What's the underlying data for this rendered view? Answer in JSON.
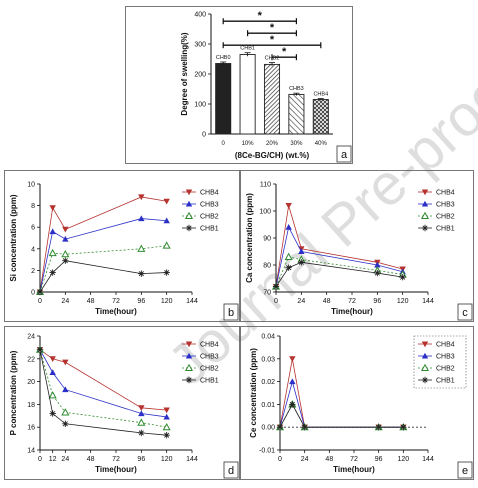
{
  "watermark": "Journal Pre-proof",
  "chart_data": [
    {
      "id": "a",
      "type": "bar",
      "panel_label": "a",
      "ylabel": "Degree of swelling(%)",
      "xlabel": "(8Ce-BG/CH) (wt.%)",
      "ylim": [
        0,
        400
      ],
      "yticks": [
        0,
        100,
        200,
        300,
        400
      ],
      "categories": [
        "0",
        "10%",
        "20%",
        "30%",
        "40%"
      ],
      "bar_labels": [
        "CHB0",
        "CHB1",
        "CHB2",
        "CHB3",
        "CHB4"
      ],
      "values": [
        235,
        265,
        232,
        132,
        115
      ],
      "errors": [
        5,
        6,
        6,
        4,
        3
      ],
      "patterns": [
        "solid",
        "white",
        "dense-hatch",
        "hatch",
        "cross"
      ],
      "significance": [
        {
          "from": 0,
          "to": 3,
          "label": "*"
        },
        {
          "from": 1,
          "to": 3,
          "label": "*"
        },
        {
          "from": 0,
          "to": 4,
          "label": "*"
        },
        {
          "from": 2,
          "to": 3,
          "label": "*"
        }
      ],
      "grid": false
    },
    {
      "id": "b",
      "type": "line",
      "panel_label": "b",
      "ylabel": "Si concentration (ppm)",
      "xlabel": "Time(hour)",
      "xlim": [
        0,
        144
      ],
      "xticks": [
        0,
        24,
        48,
        72,
        96,
        120,
        144
      ],
      "ylim": [
        0,
        10
      ],
      "yticks": [
        0,
        2,
        4,
        6,
        8,
        10
      ],
      "x": [
        0,
        12,
        24,
        96,
        120
      ],
      "series": [
        {
          "name": "CHB4",
          "color": "#b5322f",
          "marker": "tri-down",
          "dash": "",
          "values": [
            0,
            7.8,
            5.8,
            8.8,
            8.4
          ]
        },
        {
          "name": "CHB3",
          "color": "#2b2fc7",
          "marker": "tri-up",
          "dash": "",
          "values": [
            0,
            5.6,
            4.9,
            6.8,
            6.6
          ]
        },
        {
          "name": "CHB2",
          "color": "#2e8b2e",
          "marker": "tri-open",
          "dash": "2,2",
          "values": [
            0,
            3.6,
            3.5,
            4.0,
            4.3
          ]
        },
        {
          "name": "CHB1",
          "color": "#222222",
          "marker": "star",
          "dash": "",
          "values": [
            0,
            1.8,
            2.9,
            1.7,
            1.8
          ]
        }
      ],
      "legend_position": "top-right",
      "grid": false
    },
    {
      "id": "c",
      "type": "line",
      "panel_label": "c",
      "ylabel": "Ca concentration (ppm)",
      "xlabel": "Time(hour)",
      "xlim": [
        0,
        144
      ],
      "xticks": [
        0,
        24,
        48,
        72,
        96,
        120,
        144
      ],
      "ylim": [
        70,
        110
      ],
      "yticks": [
        70,
        80,
        90,
        100,
        110
      ],
      "x": [
        0,
        12,
        24,
        96,
        120
      ],
      "series": [
        {
          "name": "CHB4",
          "color": "#b5322f",
          "marker": "tri-down",
          "dash": "",
          "values": [
            72,
            102,
            86,
            81,
            78.5
          ]
        },
        {
          "name": "CHB3",
          "color": "#2b2fc7",
          "marker": "tri-up",
          "dash": "",
          "values": [
            72,
            94,
            85,
            80,
            77.5
          ]
        },
        {
          "name": "CHB2",
          "color": "#2e8b2e",
          "marker": "tri-open",
          "dash": "2,2",
          "values": [
            72,
            83,
            82,
            78,
            76.5
          ]
        },
        {
          "name": "CHB1",
          "color": "#222222",
          "marker": "star",
          "dash": "",
          "values": [
            72,
            79,
            81,
            77,
            75.5
          ]
        }
      ],
      "legend_position": "top-right",
      "grid": false
    },
    {
      "id": "d",
      "type": "line",
      "panel_label": "d",
      "ylabel": "P concentration (ppm)",
      "xlabel": "Time(hour)",
      "xlim": [
        0,
        144
      ],
      "xticks": [
        0,
        12,
        24,
        48,
        72,
        96,
        120,
        144
      ],
      "ylim": [
        14,
        24
      ],
      "yticks": [
        14,
        16,
        18,
        20,
        22,
        24
      ],
      "x": [
        0,
        12,
        24,
        96,
        120
      ],
      "series": [
        {
          "name": "CHB4",
          "color": "#b5322f",
          "marker": "tri-down",
          "dash": "",
          "values": [
            22.8,
            22.0,
            21.7,
            17.7,
            17.5
          ]
        },
        {
          "name": "CHB3",
          "color": "#2b2fc7",
          "marker": "tri-up",
          "dash": "",
          "values": [
            22.8,
            20.8,
            19.3,
            17.2,
            16.9
          ]
        },
        {
          "name": "CHB2",
          "color": "#2e8b2e",
          "marker": "tri-open",
          "dash": "2,2",
          "values": [
            22.8,
            18.8,
            17.3,
            16.4,
            16.0
          ]
        },
        {
          "name": "CHB1",
          "color": "#222222",
          "marker": "star",
          "dash": "",
          "values": [
            22.8,
            17.2,
            16.3,
            15.5,
            15.3
          ]
        }
      ],
      "legend_position": "top-right",
      "grid": false
    },
    {
      "id": "e",
      "type": "line",
      "panel_label": "e",
      "ylabel": "Ce concentration (ppm)",
      "xlabel": "Time(hour)",
      "xlim": [
        0,
        144
      ],
      "xticks": [
        0,
        24,
        48,
        72,
        96,
        120,
        144
      ],
      "ylim": [
        -0.01,
        0.04
      ],
      "yticks": [
        -0.01,
        0.0,
        0.01,
        0.02,
        0.03,
        0.04
      ],
      "ytick_labels": [
        "-0.01",
        "0.00",
        "0.01",
        "0.02",
        "0.03",
        "0.04"
      ],
      "x": [
        0,
        12,
        24,
        96,
        120
      ],
      "series": [
        {
          "name": "CHB4",
          "color": "#b5322f",
          "marker": "tri-down",
          "dash": "",
          "values": [
            0,
            0.03,
            0,
            0,
            0
          ]
        },
        {
          "name": "CHB3",
          "color": "#2b2fc7",
          "marker": "tri-up",
          "dash": "",
          "values": [
            0,
            0.02,
            0,
            0,
            0
          ]
        },
        {
          "name": "CHB2",
          "color": "#2e8b2e",
          "marker": "tri-open",
          "dash": "2,2",
          "values": [
            0,
            0.01,
            0,
            0,
            0
          ]
        },
        {
          "name": "CHB1",
          "color": "#222222",
          "marker": "star",
          "dash": "",
          "values": [
            0,
            0.01,
            0,
            0,
            0
          ]
        }
      ],
      "zero_line": true,
      "legend_position": "top-right",
      "legend_border": "dotted",
      "grid": false
    }
  ]
}
